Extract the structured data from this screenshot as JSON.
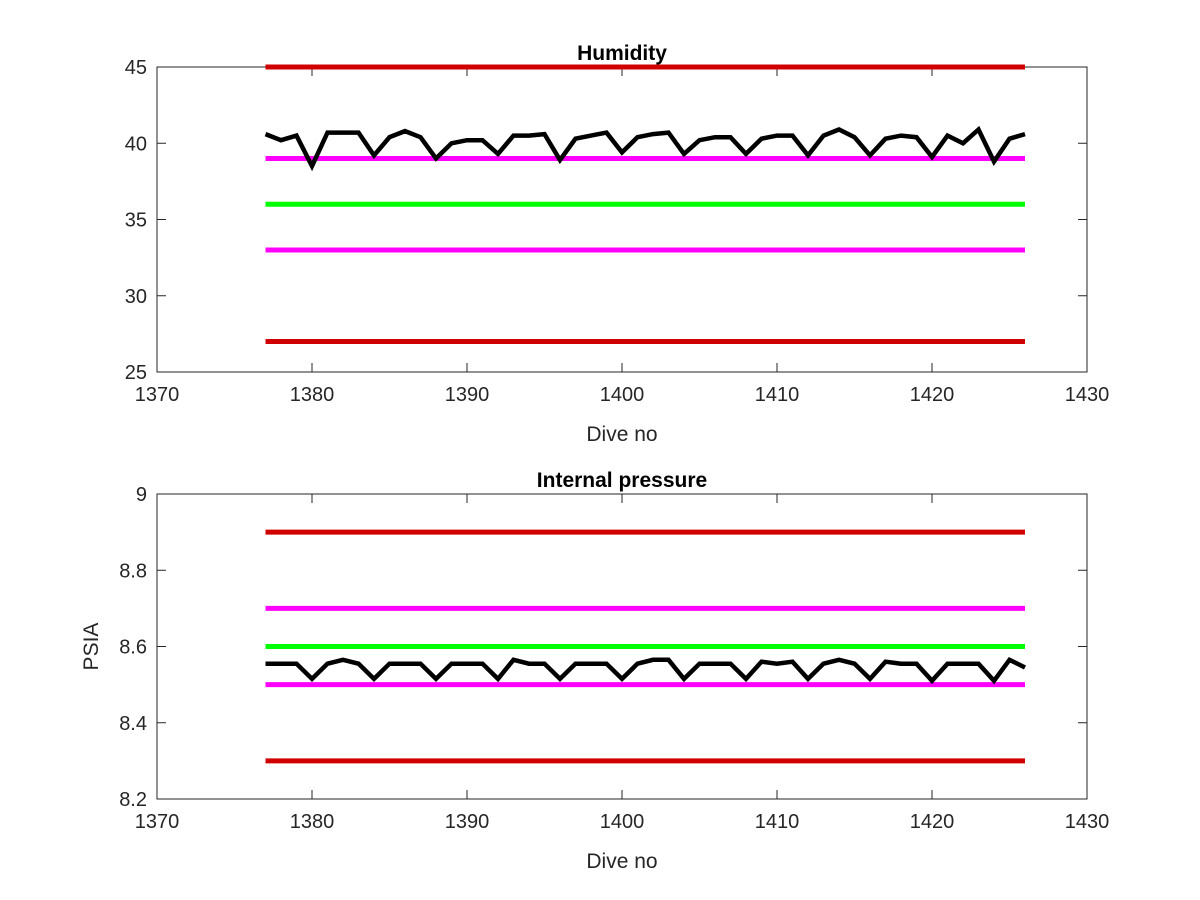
{
  "chart_data": [
    {
      "type": "line",
      "title": "Humidity",
      "xlabel": "Dive no",
      "ylabel": "",
      "xlim": [
        1370,
        1430
      ],
      "ylim": [
        25,
        45
      ],
      "xticks": [
        "1370",
        "1380",
        "1390",
        "1400",
        "1410",
        "1420",
        "1430"
      ],
      "yticks": [
        "25",
        "30",
        "35",
        "40",
        "45"
      ],
      "grid": false,
      "legend": "none",
      "series": [
        {
          "color": "#d00000",
          "x": [
            1377,
            1426
          ],
          "y": [
            45,
            45
          ]
        },
        {
          "color": "#d00000",
          "x": [
            1377,
            1426
          ],
          "y": [
            27,
            27
          ]
        },
        {
          "color": "#ff00ff",
          "x": [
            1377,
            1426
          ],
          "y": [
            39,
            39
          ]
        },
        {
          "color": "#ff00ff",
          "x": [
            1377,
            1426
          ],
          "y": [
            33,
            33
          ]
        },
        {
          "color": "#00ff00",
          "x": [
            1377,
            1426
          ],
          "y": [
            36,
            36
          ]
        },
        {
          "color": "#000000",
          "x": [
            1377,
            1378,
            1379,
            1380,
            1381,
            1382,
            1383,
            1384,
            1385,
            1386,
            1387,
            1388,
            1389,
            1390,
            1391,
            1392,
            1393,
            1394,
            1395,
            1396,
            1397,
            1398,
            1399,
            1400,
            1401,
            1402,
            1403,
            1404,
            1405,
            1406,
            1407,
            1408,
            1409,
            1410,
            1411,
            1412,
            1413,
            1414,
            1415,
            1416,
            1417,
            1418,
            1419,
            1420,
            1421,
            1422,
            1423,
            1424,
            1425,
            1426
          ],
          "y": [
            40.6,
            40.2,
            40.5,
            38.5,
            40.7,
            40.7,
            40.7,
            39.2,
            40.4,
            40.8,
            40.4,
            39.0,
            40.0,
            40.2,
            40.2,
            39.3,
            40.5,
            40.5,
            40.6,
            38.9,
            40.3,
            40.5,
            40.7,
            39.4,
            40.4,
            40.6,
            40.7,
            39.3,
            40.2,
            40.4,
            40.4,
            39.3,
            40.3,
            40.5,
            40.5,
            39.2,
            40.5,
            40.9,
            40.4,
            39.2,
            40.3,
            40.5,
            40.4,
            39.1,
            40.5,
            40.0,
            40.9,
            38.8,
            40.3,
            40.6
          ]
        }
      ]
    },
    {
      "type": "line",
      "title": "Internal pressure",
      "xlabel": "Dive no",
      "ylabel": "PSIA",
      "xlim": [
        1370,
        1430
      ],
      "ylim": [
        8.2,
        9
      ],
      "xticks": [
        "1370",
        "1380",
        "1390",
        "1400",
        "1410",
        "1420",
        "1430"
      ],
      "yticks": [
        "8.2",
        "8.4",
        "8.6",
        "8.8",
        "9"
      ],
      "grid": false,
      "legend": "none",
      "series": [
        {
          "color": "#d00000",
          "x": [
            1377,
            1426
          ],
          "y": [
            8.9,
            8.9
          ]
        },
        {
          "color": "#d00000",
          "x": [
            1377,
            1426
          ],
          "y": [
            8.3,
            8.3
          ]
        },
        {
          "color": "#ff00ff",
          "x": [
            1377,
            1426
          ],
          "y": [
            8.7,
            8.7
          ]
        },
        {
          "color": "#ff00ff",
          "x": [
            1377,
            1426
          ],
          "y": [
            8.5,
            8.5
          ]
        },
        {
          "color": "#00ff00",
          "x": [
            1377,
            1426
          ],
          "y": [
            8.6,
            8.6
          ]
        },
        {
          "color": "#000000",
          "x": [
            1377,
            1378,
            1379,
            1380,
            1381,
            1382,
            1383,
            1384,
            1385,
            1386,
            1387,
            1388,
            1389,
            1390,
            1391,
            1392,
            1393,
            1394,
            1395,
            1396,
            1397,
            1398,
            1399,
            1400,
            1401,
            1402,
            1403,
            1404,
            1405,
            1406,
            1407,
            1408,
            1409,
            1410,
            1411,
            1412,
            1413,
            1414,
            1415,
            1416,
            1417,
            1418,
            1419,
            1420,
            1421,
            1422,
            1423,
            1424,
            1425,
            1426
          ],
          "y": [
            8.555,
            8.555,
            8.555,
            8.515,
            8.555,
            8.565,
            8.555,
            8.515,
            8.555,
            8.555,
            8.555,
            8.515,
            8.555,
            8.555,
            8.555,
            8.515,
            8.565,
            8.555,
            8.555,
            8.515,
            8.555,
            8.555,
            8.555,
            8.515,
            8.555,
            8.565,
            8.565,
            8.515,
            8.555,
            8.555,
            8.555,
            8.515,
            8.56,
            8.555,
            8.56,
            8.515,
            8.555,
            8.565,
            8.555,
            8.515,
            8.56,
            8.555,
            8.555,
            8.51,
            8.555,
            8.555,
            8.555,
            8.51,
            8.565,
            8.545
          ]
        }
      ]
    }
  ]
}
